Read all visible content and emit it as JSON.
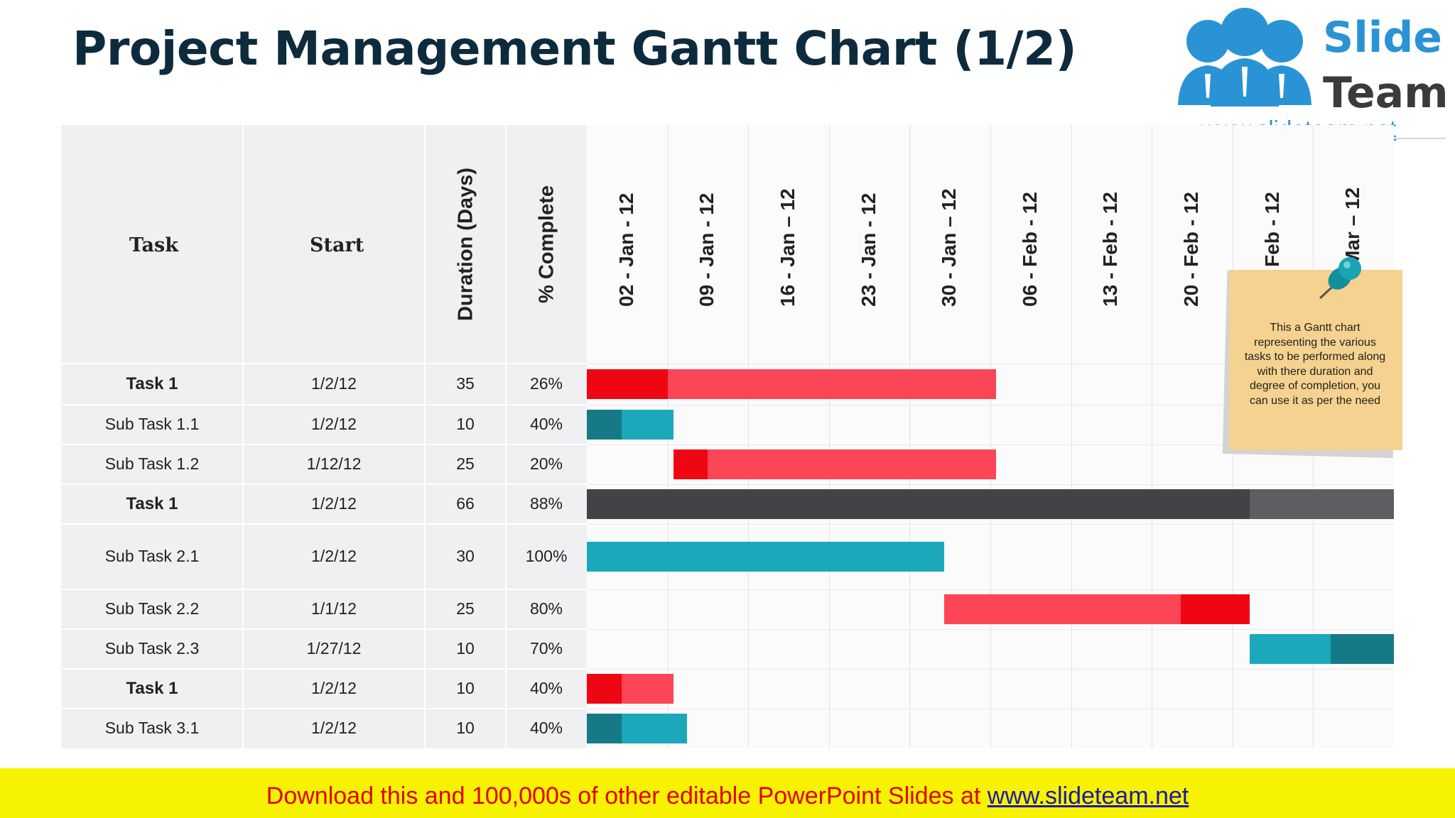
{
  "title": "Project Management Gantt Chart (1/2)",
  "logo": {
    "word1": "Slide",
    "word2": "Team",
    "url": "www.slideteam.net"
  },
  "table": {
    "headers": {
      "task": "Task",
      "start": "Start",
      "duration": "Duration (Days)",
      "complete": "% Complete"
    },
    "rows": [
      {
        "task": "Task 1",
        "start": "1/2/12",
        "duration": "35",
        "complete": "26%",
        "bold": true
      },
      {
        "task": "Sub Task 1.1",
        "start": "1/2/12",
        "duration": "10",
        "complete": "40%",
        "bold": false
      },
      {
        "task": "Sub Task 1.2",
        "start": "1/12/12",
        "duration": "25",
        "complete": "20%",
        "bold": false
      },
      {
        "task": "Task 1",
        "start": "1/2/12",
        "duration": "66",
        "complete": "88%",
        "bold": true
      },
      {
        "task": "Sub Task 2.1",
        "start": "1/2/12",
        "duration": "30",
        "complete": "100%",
        "bold": false
      },
      {
        "task": "Sub Task 2.2",
        "start": "1/1/12",
        "duration": "25",
        "complete": "80%",
        "bold": false
      },
      {
        "task": "Sub Task 2.3",
        "start": "1/27/12",
        "duration": "10",
        "complete": "70%",
        "bold": false
      },
      {
        "task": "Task 1",
        "start": "1/2/12",
        "duration": "10",
        "complete": "40%",
        "bold": true
      },
      {
        "task": "Sub Task 3.1",
        "start": "1/2/12",
        "duration": "10",
        "complete": "40%",
        "bold": false
      }
    ]
  },
  "chart_data": {
    "type": "bar",
    "categories": [
      "02 - Jan - 12",
      "09 - Jan - 12",
      "16 - Jan – 12",
      "23 - Jan - 12",
      "30 - Jan – 12",
      "06 - Feb - 12",
      "13 - Feb - 12",
      "20 - Feb - 12",
      "27 - Feb - 12",
      "05 - Mar – 12"
    ],
    "week_days": 7,
    "bars": [
      {
        "start_day": 0,
        "days": 35.5,
        "complete_days": 7,
        "complete_side": "left",
        "main_color": "#fc4555",
        "done_color": "#ee0612"
      },
      {
        "start_day": 0,
        "days": 7.5,
        "complete_days": 3,
        "complete_side": "left",
        "main_color": "#1ba8ba",
        "done_color": "#157a85"
      },
      {
        "start_day": 7.5,
        "days": 28,
        "complete_days": 3,
        "complete_side": "left",
        "main_color": "#fc4555",
        "done_color": "#ee0612"
      },
      {
        "start_day": 0,
        "days": 70,
        "complete_days": 57.5,
        "complete_side": "left",
        "main_color": "#5e5d61",
        "done_color": "#434246"
      },
      {
        "start_day": 0,
        "days": 31,
        "complete_days": 31,
        "complete_side": "left",
        "main_color": "#1ba8ba",
        "done_color": "#1ba8ba"
      },
      {
        "start_day": 31,
        "days": 26.5,
        "complete_days": 6,
        "complete_side": "right",
        "main_color": "#fc4555",
        "done_color": "#ee0612"
      },
      {
        "start_day": 57.5,
        "days": 12.5,
        "complete_days": 5.5,
        "complete_side": "right",
        "main_color": "#1ba8ba",
        "done_color": "#157a85"
      },
      {
        "start_day": 0,
        "days": 7.5,
        "complete_days": 3,
        "complete_side": "left",
        "main_color": "#fc4555",
        "done_color": "#ee0612"
      },
      {
        "start_day": 0,
        "days": 8.7,
        "complete_days": 3,
        "complete_side": "left",
        "main_color": "#1ba8ba",
        "done_color": "#157a85"
      }
    ],
    "xlim_days": [
      0,
      70
    ]
  },
  "note": {
    "text": "This a Gantt chart representing the various tasks to be performed along with there duration and degree of completion, you can use it as per the need"
  },
  "footer": {
    "text": "Download this and 100,000s of other editable PowerPoint Slides at ",
    "link": "www.slideteam.net"
  },
  "colors": {
    "title": "#0e2b3d",
    "footer_bg": "#f7f200",
    "footer_text": "#e00000",
    "note": "#f5d28f",
    "pin": "#1aa3b3"
  }
}
